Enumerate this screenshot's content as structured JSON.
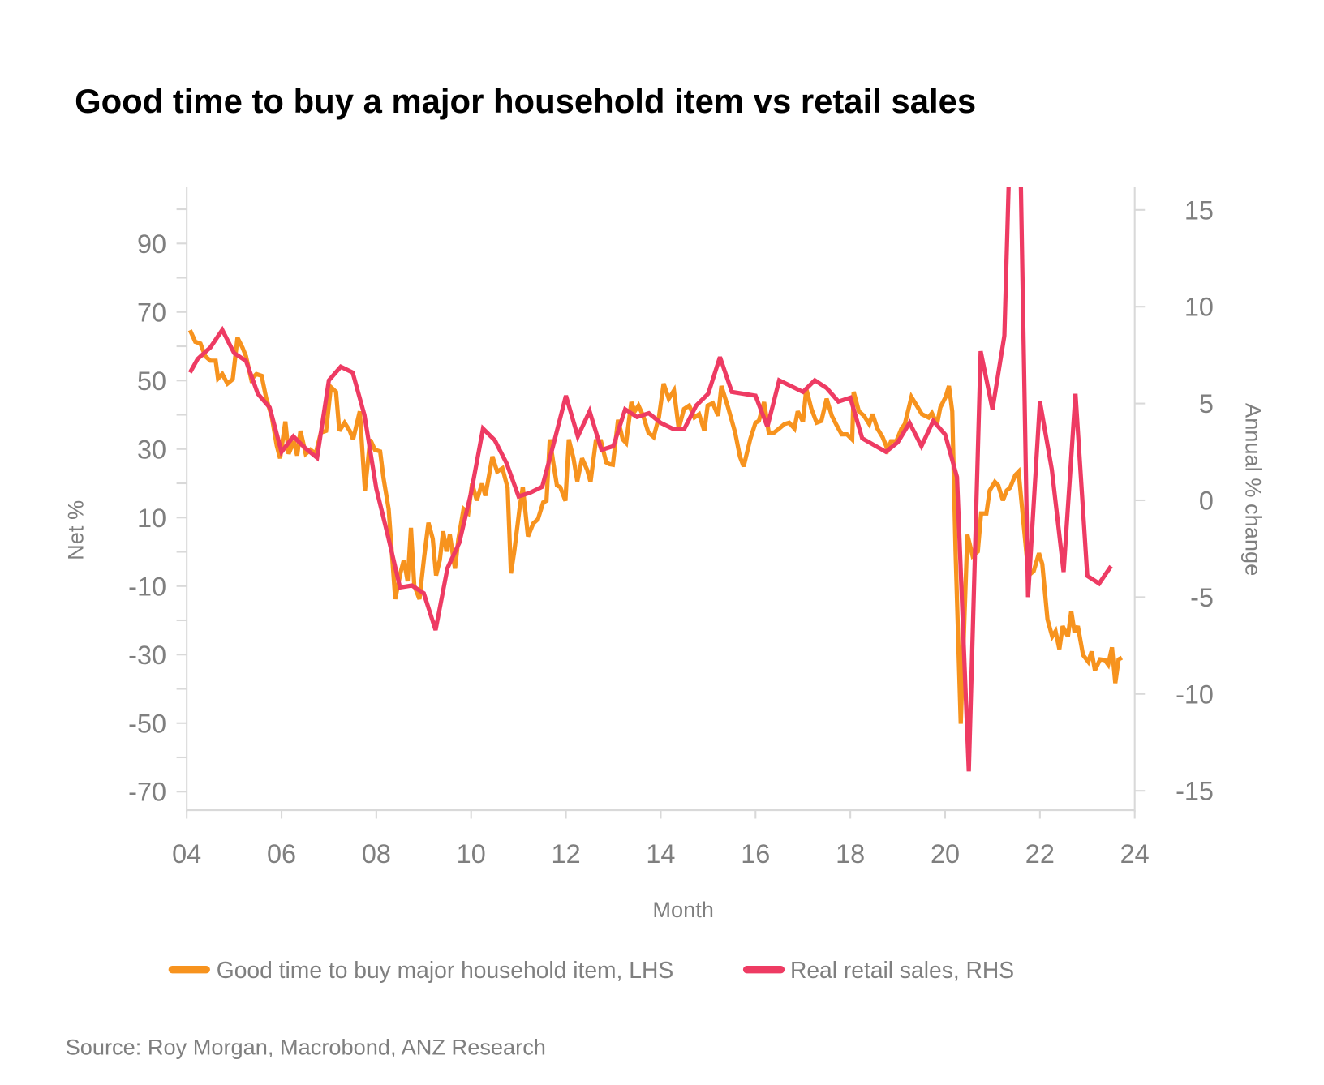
{
  "chart_data": {
    "type": "line",
    "title": "Good time to buy a major household item vs retail sales",
    "xlabel": "Month",
    "ylabel_left": "Net %",
    "ylabel_right": "Annual % change",
    "xlim": [
      2004,
      2024
    ],
    "ylim_left": [
      -75.4,
      106.6
    ],
    "ylim_right": [
      -16,
      16.2
    ],
    "x_ticks": [
      {
        "v": 2004,
        "label": "04"
      },
      {
        "v": 2006,
        "label": "06"
      },
      {
        "v": 2008,
        "label": "08"
      },
      {
        "v": 2010,
        "label": "10"
      },
      {
        "v": 2012,
        "label": "12"
      },
      {
        "v": 2014,
        "label": "14"
      },
      {
        "v": 2016,
        "label": "16"
      },
      {
        "v": 2018,
        "label": "18"
      },
      {
        "v": 2020,
        "label": "20"
      },
      {
        "v": 2022,
        "label": "22"
      },
      {
        "v": 2024,
        "label": "24"
      }
    ],
    "y_left_ticks": [
      "90",
      "70",
      "50",
      "30",
      "10",
      "-10",
      "-30",
      "-50",
      "-70"
    ],
    "y_right_ticks": [
      "15",
      "10",
      "5",
      "0",
      "-5",
      "-10",
      "-15"
    ],
    "grid": false,
    "legend_placement": "bottom",
    "source": "Source: Roy Morgan, Macrobond, ANZ Research",
    "series": [
      {
        "name": "Good time to buy major household item, LHS",
        "axis": "left",
        "color": "#F7931E",
        "x": [
          2004.07,
          2004.18,
          2004.29,
          2004.39,
          2004.5,
          2004.61,
          2004.66,
          2004.75,
          2004.86,
          2004.97,
          2005.07,
          2005.18,
          2005.25,
          2005.36,
          2005.47,
          2005.58,
          2005.68,
          2005.79,
          2005.9,
          2005.97,
          2006.08,
          2006.15,
          2006.26,
          2006.33,
          2006.4,
          2006.51,
          2006.61,
          2006.72,
          2006.83,
          2006.94,
          2007.04,
          2007.15,
          2007.22,
          2007.33,
          2007.44,
          2007.51,
          2007.65,
          2007.76,
          2007.87,
          2007.97,
          2008.08,
          2008.15,
          2008.26,
          2008.4,
          2008.51,
          2008.58,
          2008.66,
          2008.73,
          2008.8,
          2008.91,
          2009.01,
          2009.1,
          2009.19,
          2009.26,
          2009.34,
          2009.41,
          2009.48,
          2009.55,
          2009.66,
          2009.73,
          2009.84,
          2009.94,
          2010.02,
          2010.12,
          2010.23,
          2010.3,
          2010.45,
          2010.55,
          2010.66,
          2010.77,
          2010.84,
          2010.91,
          2011.02,
          2011.09,
          2011.2,
          2011.31,
          2011.41,
          2011.52,
          2011.59,
          2011.66,
          2011.74,
          2011.81,
          2011.88,
          2011.99,
          2012.06,
          2012.16,
          2012.24,
          2012.34,
          2012.45,
          2012.52,
          2012.63,
          2012.74,
          2012.85,
          2012.92,
          2012.99,
          2013.1,
          2013.2,
          2013.27,
          2013.38,
          2013.45,
          2013.53,
          2013.63,
          2013.74,
          2013.85,
          2013.96,
          2014.06,
          2014.17,
          2014.28,
          2014.38,
          2014.49,
          2014.6,
          2014.71,
          2014.81,
          2014.92,
          2014.99,
          2015.1,
          2015.21,
          2015.28,
          2015.42,
          2015.57,
          2015.67,
          2015.75,
          2015.89,
          2016.0,
          2016.07,
          2016.18,
          2016.28,
          2016.39,
          2016.5,
          2016.61,
          2016.71,
          2016.82,
          2016.89,
          2017.0,
          2017.07,
          2017.18,
          2017.29,
          2017.39,
          2017.5,
          2017.61,
          2017.72,
          2017.82,
          2017.93,
          2018.04,
          2018.07,
          2018.18,
          2018.29,
          2018.4,
          2018.47,
          2018.57,
          2018.68,
          2018.79,
          2018.86,
          2018.97,
          2019.08,
          2019.15,
          2019.29,
          2019.4,
          2019.51,
          2019.65,
          2019.72,
          2019.83,
          2019.9,
          2020.01,
          2020.08,
          2020.15,
          2020.22,
          2020.33,
          2020.47,
          2020.58,
          2020.69,
          2020.76,
          2020.87,
          2020.94,
          2021.05,
          2021.12,
          2021.22,
          2021.3,
          2021.37,
          2021.48,
          2021.55,
          2021.65,
          2021.76,
          2021.87,
          2021.98,
          2022.05,
          2022.16,
          2022.26,
          2022.33,
          2022.41,
          2022.48,
          2022.59,
          2022.66,
          2022.73,
          2022.8,
          2022.91,
          2023.02,
          2023.09,
          2023.16,
          2023.27,
          2023.37,
          2023.44,
          2023.52,
          2023.59,
          2023.66,
          2023.73
        ],
        "values": [
          64.7,
          61.3,
          60.8,
          57.1,
          55.8,
          55.8,
          50.6,
          51.9,
          49.1,
          50.4,
          62.5,
          59.5,
          57.1,
          50.4,
          51.9,
          51.4,
          44.7,
          39.7,
          31.0,
          27.3,
          38.0,
          28.6,
          32.3,
          28.1,
          35.3,
          28.6,
          29.8,
          28.6,
          34.8,
          35.3,
          48.1,
          46.7,
          35.3,
          37.7,
          35.3,
          32.8,
          41.0,
          17.9,
          32.8,
          29.8,
          29.3,
          21.6,
          12.5,
          -13.8,
          -6.1,
          -2.4,
          -8.6,
          7.0,
          -9.8,
          -13.8,
          -1.4,
          8.5,
          3.8,
          -6.9,
          -2.4,
          6.0,
          0.1,
          5.0,
          -4.9,
          3.6,
          12.5,
          11.3,
          19.9,
          15.0,
          19.9,
          16.4,
          27.8,
          23.4,
          24.4,
          18.7,
          -6.3,
          0.1,
          12.5,
          18.9,
          4.5,
          8.3,
          9.5,
          14.4,
          14.9,
          32.8,
          25.4,
          19.4,
          18.9,
          14.9,
          32.8,
          27.3,
          20.6,
          27.3,
          23.9,
          20.4,
          32.3,
          32.3,
          26.1,
          25.6,
          25.4,
          38.5,
          32.8,
          31.8,
          43.7,
          41.0,
          42.7,
          39.7,
          34.8,
          33.5,
          39.2,
          49.1,
          44.7,
          47.1,
          36.0,
          41.7,
          42.7,
          39.2,
          40.2,
          35.3,
          42.7,
          43.4,
          39.7,
          48.4,
          42.2,
          34.8,
          27.8,
          24.9,
          33.0,
          37.7,
          38.2,
          43.7,
          34.8,
          34.8,
          36.0,
          37.3,
          37.7,
          36.0,
          41.0,
          38.0,
          47.6,
          41.7,
          37.7,
          38.2,
          44.7,
          39.7,
          36.7,
          34.3,
          34.3,
          32.8,
          46.7,
          41.0,
          39.7,
          37.3,
          40.2,
          36.0,
          33.5,
          29.8,
          32.3,
          32.3,
          36.0,
          37.3,
          45.2,
          42.7,
          40.2,
          39.2,
          40.5,
          37.3,
          42.2,
          45.2,
          48.4,
          41.0,
          0.1,
          -50.2,
          5.0,
          -1.2,
          0.1,
          11.2,
          11.2,
          17.9,
          20.4,
          19.4,
          15.0,
          17.9,
          18.7,
          22.4,
          23.4,
          8.8,
          -6.9,
          -5.6,
          -0.4,
          -3.6,
          -19.7,
          -24.7,
          -23.2,
          -28.4,
          -21.7,
          -24.7,
          -17.3,
          -23.5,
          -21.7,
          -30.1,
          -32.1,
          -29.1,
          -34.6,
          -31.4,
          -31.6,
          -32.9,
          -27.9,
          -38.3,
          -31.4,
          -30.9
        ]
      },
      {
        "name": "Real retail sales, RHS",
        "axis": "right",
        "color": "#EE3B63",
        "x": [
          2004.07,
          2004.23,
          2004.5,
          2004.75,
          2005.0,
          2005.25,
          2005.5,
          2005.75,
          2006.0,
          2006.25,
          2006.5,
          2006.75,
          2007.0,
          2007.25,
          2007.5,
          2007.75,
          2008.0,
          2008.25,
          2008.5,
          2008.75,
          2009.0,
          2009.25,
          2009.5,
          2009.75,
          2010.0,
          2010.25,
          2010.5,
          2010.75,
          2011.0,
          2011.25,
          2011.5,
          2011.75,
          2012.0,
          2012.25,
          2012.5,
          2012.75,
          2013.0,
          2013.25,
          2013.5,
          2013.75,
          2014.0,
          2014.25,
          2014.5,
          2014.75,
          2015.0,
          2015.25,
          2015.5,
          2016.0,
          2016.25,
          2016.5,
          2017.0,
          2017.25,
          2017.5,
          2017.75,
          2018.0,
          2018.25,
          2018.75,
          2019.0,
          2019.25,
          2019.5,
          2019.75,
          2020.0,
          2020.25,
          2020.5,
          2020.75,
          2021.0,
          2021.25,
          2021.5,
          2021.75,
          2022.0,
          2022.25,
          2022.5,
          2022.75,
          2023.0,
          2023.25,
          2023.5
        ],
        "values": [
          6.6,
          7.3,
          7.9,
          8.8,
          7.6,
          7.2,
          5.5,
          4.8,
          2.5,
          3.3,
          2.7,
          2.2,
          6.2,
          6.9,
          6.6,
          4.4,
          0.6,
          -1.9,
          -4.5,
          -4.4,
          -4.8,
          -6.7,
          -3.5,
          -2.2,
          0.4,
          3.7,
          3.1,
          1.9,
          0.2,
          0.4,
          0.7,
          3.0,
          5.4,
          3.3,
          4.6,
          2.6,
          2.8,
          4.7,
          4.3,
          4.5,
          4.0,
          3.7,
          3.7,
          4.9,
          5.5,
          7.4,
          5.6,
          5.4,
          3.8,
          6.2,
          5.6,
          6.2,
          5.8,
          5.1,
          5.3,
          3.2,
          2.5,
          3.0,
          4.0,
          2.8,
          4.1,
          3.4,
          1.2,
          -14.0,
          7.7,
          4.7,
          8.5,
          30.0,
          -5.0,
          5.1,
          1.6,
          -3.7,
          5.5,
          -3.9,
          -4.3,
          -3.4
        ]
      }
    ]
  }
}
